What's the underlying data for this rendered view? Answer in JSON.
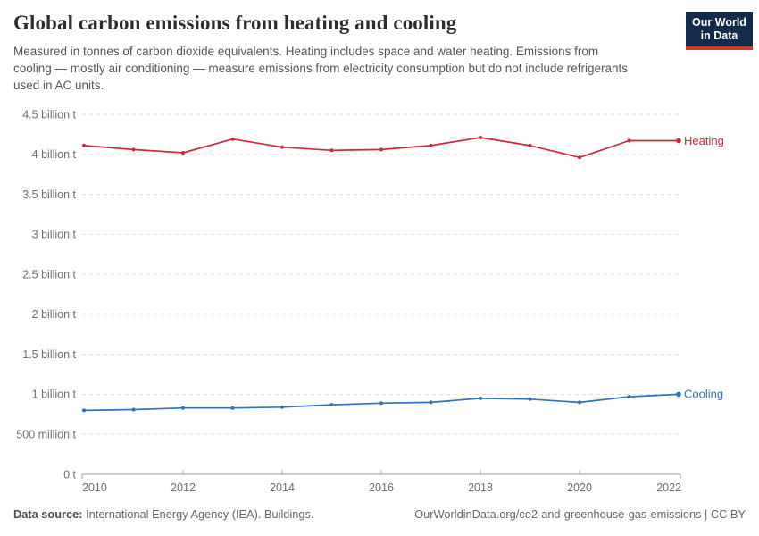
{
  "header": {
    "title": "Global carbon emissions from heating and cooling",
    "subtitle": "Measured in tonnes of carbon dioxide equivalents. Heating includes space and water heating. Emissions from cooling — mostly air conditioning — measure emissions from electricity consumption but do not include refrigerants used in AC units.",
    "logo": {
      "line1": "Our World",
      "line2": "in Data",
      "bg": "#132c4d",
      "accent": "#d23a2e"
    }
  },
  "chart_data": {
    "type": "line",
    "title": "Global carbon emissions from heating and cooling",
    "x": [
      2010,
      2011,
      2012,
      2013,
      2014,
      2015,
      2016,
      2017,
      2018,
      2019,
      2020,
      2021,
      2022
    ],
    "series": [
      {
        "name": "Heating",
        "color": "#cb2a3d",
        "values": [
          4.11,
          4.06,
          4.02,
          4.19,
          4.09,
          4.05,
          4.06,
          4.11,
          4.21,
          4.11,
          3.96,
          4.17,
          4.17
        ]
      },
      {
        "name": "Cooling",
        "color": "#3371bb",
        "values": [
          0.8,
          0.81,
          0.83,
          0.83,
          0.84,
          0.87,
          0.89,
          0.9,
          0.95,
          0.94,
          0.9,
          0.97,
          1.0
        ]
      }
    ],
    "unit": "billion tonnes CO2-eq",
    "ylim": [
      0,
      4.5
    ],
    "yticks": [
      {
        "v": 0,
        "label": "0 t"
      },
      {
        "v": 0.5,
        "label": "500 million t"
      },
      {
        "v": 1,
        "label": "1 billion t"
      },
      {
        "v": 1.5,
        "label": "1.5 billion t"
      },
      {
        "v": 2,
        "label": "2 billion t"
      },
      {
        "v": 2.5,
        "label": "2.5 billion t"
      },
      {
        "v": 3,
        "label": "3 billion t"
      },
      {
        "v": 3.5,
        "label": "3.5 billion t"
      },
      {
        "v": 4,
        "label": "4 billion t"
      },
      {
        "v": 4.5,
        "label": "4.5 billion t"
      }
    ],
    "xticks": [
      {
        "year": 2010,
        "label": "2010"
      },
      {
        "year": 2012,
        "label": "2012"
      },
      {
        "year": 2014,
        "label": "2014"
      },
      {
        "year": 2016,
        "label": "2016"
      },
      {
        "year": 2018,
        "label": "2018"
      },
      {
        "year": 2020,
        "label": "2020"
      },
      {
        "year": 2022,
        "label": "2022"
      }
    ],
    "grid": "horizontal dashed",
    "legend_position": "line-end labels"
  },
  "footer": {
    "source_label": "Data source:",
    "source_text": " International Energy Agency (IEA). Buildings.",
    "credit": "OurWorldinData.org/co2-and-greenhouse-gas-emissions | CC BY"
  }
}
